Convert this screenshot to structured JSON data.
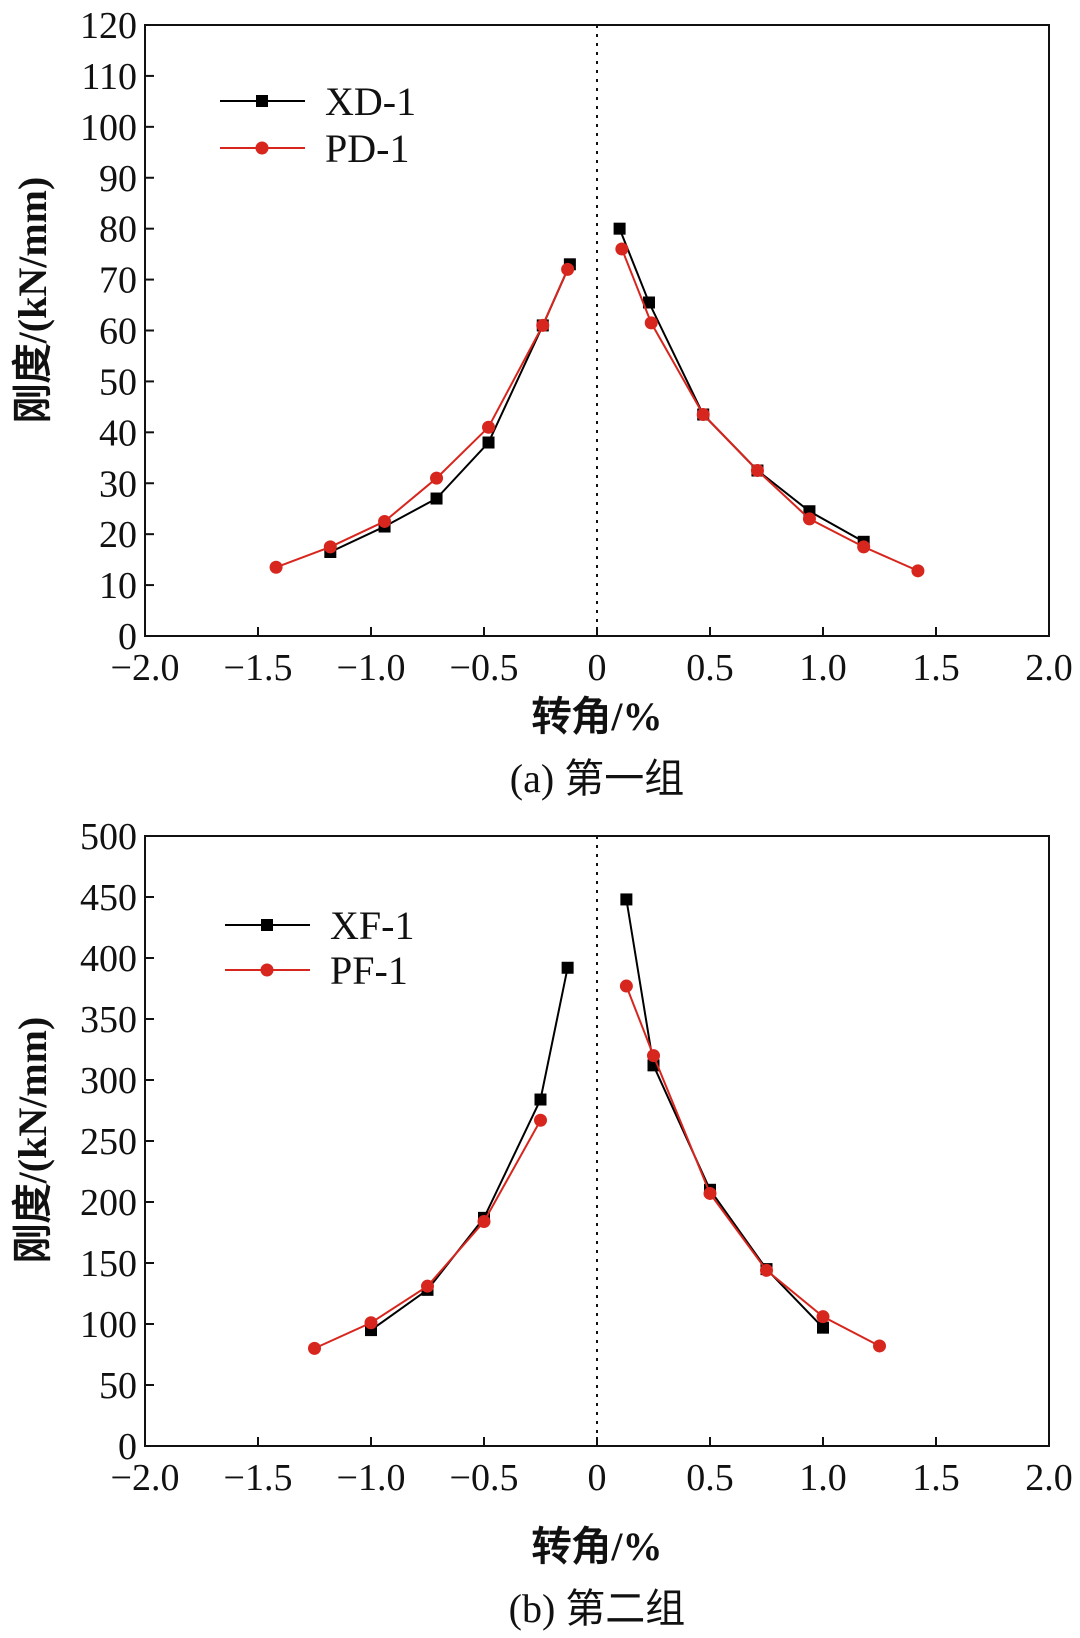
{
  "figure": {
    "captions": [
      "(a) 第一组",
      "(b) 第二组"
    ]
  },
  "chart_data": [
    {
      "type": "line",
      "caption": "(a) 第一组",
      "xlabel": "转角/%",
      "ylabel": "刚度/(kN/mm)",
      "xlim": [
        -2.0,
        2.0
      ],
      "ylim": [
        0,
        120
      ],
      "xticks": [
        "−2.0",
        "−1.5",
        "−1.0",
        "−0.5",
        "0",
        "0.5",
        "1.0",
        "1.5",
        "2.0"
      ],
      "xtick_values": [
        -2.0,
        -1.5,
        -1.0,
        -0.5,
        0,
        0.5,
        1.0,
        1.5,
        2.0
      ],
      "yticks": [
        "0",
        "10",
        "20",
        "30",
        "40",
        "50",
        "60",
        "70",
        "80",
        "90",
        "100",
        "110",
        "120"
      ],
      "ytick_values": [
        0,
        10,
        20,
        30,
        40,
        50,
        60,
        70,
        80,
        90,
        100,
        110,
        120
      ],
      "zero_line": "dotted vertical at x = 0",
      "legend_position": "top-left",
      "grid": false,
      "series": [
        {
          "name": "XD-1",
          "color": "#000000",
          "marker": "square",
          "segments": [
            {
              "x": [
                -1.18,
                -0.94,
                -0.71,
                -0.48,
                -0.24,
                -0.12
              ],
              "y": [
                16.5,
                21.5,
                27,
                38,
                61,
                73
              ]
            },
            {
              "x": [
                0.1,
                0.23,
                0.47,
                0.71,
                0.94,
                1.18
              ],
              "y": [
                80,
                65.5,
                43.5,
                32.5,
                24.5,
                18.5
              ]
            }
          ]
        },
        {
          "name": "PD-1",
          "color": "#d7261e",
          "marker": "circle",
          "segments": [
            {
              "x": [
                -1.42,
                -1.18,
                -0.94,
                -0.71,
                -0.48,
                -0.24,
                -0.13
              ],
              "y": [
                13.5,
                17.5,
                22.5,
                31,
                41,
                61,
                72
              ]
            },
            {
              "x": [
                0.11,
                0.24,
                0.47,
                0.71,
                0.94,
                1.18,
                1.42
              ],
              "y": [
                76,
                61.5,
                43.5,
                32.5,
                23,
                17.5,
                12.8
              ]
            }
          ]
        }
      ]
    },
    {
      "type": "line",
      "caption": "(b) 第二组",
      "xlabel": "转角/%",
      "ylabel": "刚度/(kN/mm)",
      "xlim": [
        -2.0,
        2.0
      ],
      "ylim": [
        0,
        500
      ],
      "xticks": [
        "−2.0",
        "−1.5",
        "−1.0",
        "−0.5",
        "0",
        "0.5",
        "1.0",
        "1.5",
        "2.0"
      ],
      "xtick_values": [
        -2.0,
        -1.5,
        -1.0,
        -0.5,
        0,
        0.5,
        1.0,
        1.5,
        2.0
      ],
      "yticks": [
        "0",
        "50",
        "100",
        "150",
        "200",
        "250",
        "300",
        "350",
        "400",
        "450",
        "500"
      ],
      "ytick_values": [
        0,
        50,
        100,
        150,
        200,
        250,
        300,
        350,
        400,
        450,
        500
      ],
      "zero_line": "dotted vertical at x = 0",
      "legend_position": "top-left",
      "grid": false,
      "series": [
        {
          "name": "XF-1",
          "color": "#000000",
          "marker": "square",
          "segments": [
            {
              "x": [
                -1.0,
                -0.75,
                -0.5,
                -0.25,
                -0.13
              ],
              "y": [
                95,
                128,
                187,
                284,
                392
              ]
            },
            {
              "x": [
                0.13,
                0.25,
                0.5,
                0.75,
                1.0
              ],
              "y": [
                448,
                312,
                210,
                145,
                97
              ]
            }
          ]
        },
        {
          "name": "PF-1",
          "color": "#d7261e",
          "marker": "circle",
          "segments": [
            {
              "x": [
                -1.25,
                -1.0,
                -0.75,
                -0.5,
                -0.25
              ],
              "y": [
                80,
                101,
                131,
                184,
                267
              ]
            },
            {
              "x": [
                0.13,
                0.25,
                0.5,
                0.75,
                1.0,
                1.25
              ],
              "y": [
                377,
                320,
                207,
                144,
                106,
                82
              ]
            }
          ]
        }
      ]
    }
  ]
}
